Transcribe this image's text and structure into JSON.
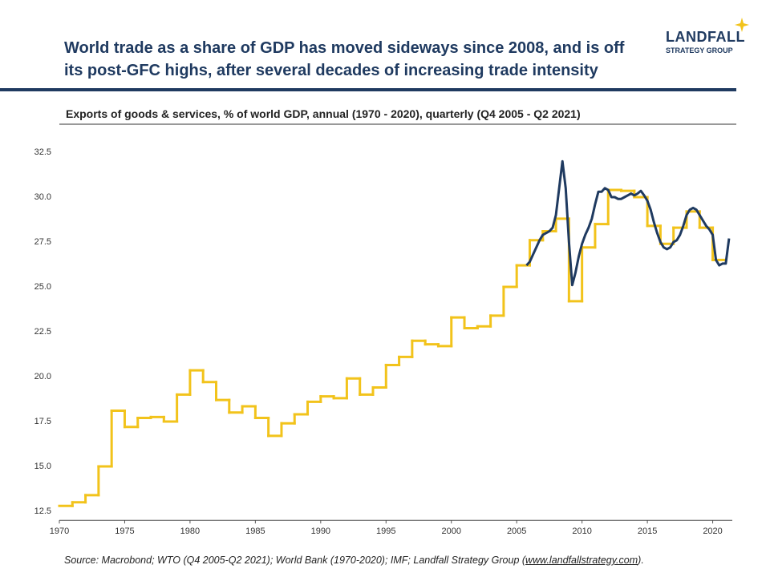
{
  "header": {
    "title_lines": [
      "World trade as a share of GDP has moved sideways since 2008, and is off",
      "its post-GFC highs, after several decades of increasing trade intensity"
    ],
    "logo_name": "LANDFALL",
    "logo_sub": "STRATEGY GROUP"
  },
  "chart_data": {
    "type": "line",
    "subtitle": "Exports of goods & services, % of world GDP, annual (1970 - 2020), quarterly (Q4 2005 - Q2 2021)",
    "xlim": [
      1970,
      2021.5
    ],
    "ylim": [
      12,
      33
    ],
    "xticks": [
      1970,
      1975,
      1980,
      1985,
      1990,
      1995,
      2000,
      2005,
      2010,
      2015,
      2020
    ],
    "yticks": [
      12.5,
      {
        "value": 15,
        "label": "15.0"
      },
      17.5,
      {
        "value": 20,
        "label": "20.0"
      },
      22.5,
      {
        "value": 25,
        "label": "25.0"
      },
      27.5,
      {
        "value": 30,
        "label": "30.0"
      },
      32.5
    ],
    "series": [
      {
        "color": "#f2c31b",
        "step": true,
        "x": [
          1970,
          1971,
          1972,
          1973,
          1974,
          1975,
          1976,
          1977,
          1978,
          1979,
          1980,
          1981,
          1982,
          1983,
          1984,
          1985,
          1986,
          1987,
          1988,
          1989,
          1990,
          1991,
          1992,
          1993,
          1994,
          1995,
          1996,
          1997,
          1998,
          1999,
          2000,
          2001,
          2002,
          2003,
          2004,
          2005,
          2006,
          2007,
          2008,
          2009,
          2010,
          2011,
          2012,
          2013,
          2014,
          2015,
          2016,
          2017,
          2018,
          2019,
          2020
        ],
        "values": [
          12.8,
          13.0,
          13.4,
          15.0,
          18.1,
          17.2,
          17.7,
          17.75,
          17.5,
          19.0,
          20.35,
          19.7,
          18.7,
          18.0,
          18.35,
          17.7,
          16.7,
          17.4,
          17.9,
          18.6,
          18.9,
          18.8,
          19.9,
          19.0,
          19.4,
          20.65,
          21.1,
          22.0,
          21.8,
          21.7,
          23.3,
          22.7,
          22.8,
          23.4,
          25.0,
          26.2,
          27.6,
          28.1,
          28.8,
          24.2,
          27.2,
          28.5,
          30.4,
          30.35,
          30.0,
          28.4,
          27.4,
          28.3,
          29.2,
          28.3,
          26.5
        ]
      },
      {
        "color": "#1f3a60",
        "x": [
          2005.75,
          2006,
          2006.25,
          2006.5,
          2006.75,
          2007,
          2007.25,
          2007.5,
          2007.75,
          2008,
          2008.25,
          2008.5,
          2008.75,
          2009,
          2009.25,
          2009.5,
          2009.75,
          2010,
          2010.25,
          2010.5,
          2010.75,
          2011,
          2011.25,
          2011.5,
          2011.75,
          2012,
          2012.25,
          2012.5,
          2012.75,
          2013,
          2013.25,
          2013.5,
          2013.75,
          2014,
          2014.25,
          2014.5,
          2014.75,
          2015,
          2015.25,
          2015.5,
          2015.75,
          2016,
          2016.25,
          2016.5,
          2016.75,
          2017,
          2017.25,
          2017.5,
          2017.75,
          2018,
          2018.25,
          2018.5,
          2018.75,
          2019,
          2019.25,
          2019.5,
          2019.75,
          2020,
          2020.25,
          2020.5,
          2020.75,
          2021,
          2021.25
        ],
        "values": [
          26.2,
          26.4,
          26.8,
          27.2,
          27.6,
          27.9,
          28.0,
          28.1,
          28.3,
          29.0,
          30.5,
          32.0,
          30.5,
          27.5,
          25.1,
          25.8,
          26.7,
          27.4,
          27.9,
          28.3,
          28.8,
          29.6,
          30.3,
          30.3,
          30.5,
          30.4,
          30.0,
          30.0,
          29.9,
          29.9,
          30.0,
          30.1,
          30.2,
          30.1,
          30.2,
          30.35,
          30.1,
          29.8,
          29.3,
          28.6,
          28.0,
          27.5,
          27.2,
          27.1,
          27.2,
          27.5,
          27.6,
          27.9,
          28.4,
          29.0,
          29.3,
          29.4,
          29.3,
          29.0,
          28.7,
          28.4,
          28.2,
          27.9,
          26.5,
          26.2,
          26.3,
          26.3,
          27.7
        ]
      }
    ]
  },
  "footer": {
    "source_prefix": "Source: Macrobond; WTO (Q4 2005-Q2 2021); World Bank (1970-2020); IMF; Landfall Strategy  Group (",
    "source_link": "www.landfallstrategy.com",
    "source_suffix": ")."
  }
}
